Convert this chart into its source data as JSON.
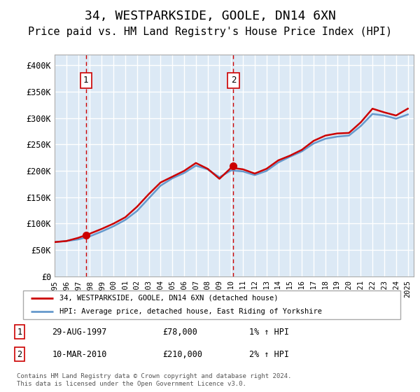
{
  "title": "34, WESTPARKSIDE, GOOLE, DN14 6XN",
  "subtitle": "Price paid vs. HM Land Registry's House Price Index (HPI)",
  "title_fontsize": 13,
  "subtitle_fontsize": 11,
  "ylabel_ticks": [
    "£0",
    "£50K",
    "£100K",
    "£150K",
    "£200K",
    "£250K",
    "£300K",
    "£350K",
    "£400K"
  ],
  "ytick_vals": [
    0,
    50000,
    100000,
    150000,
    200000,
    250000,
    300000,
    350000,
    400000
  ],
  "ylim": [
    0,
    420000
  ],
  "xlim_min": 1995.0,
  "xlim_max": 2025.5,
  "plot_bg": "#dce9f5",
  "grid_color": "#ffffff",
  "red_line_color": "#cc0000",
  "blue_line_color": "#6699cc",
  "marker_color": "#cc0000",
  "dashed_color": "#cc0000",
  "legend_label_red": "34, WESTPARKSIDE, GOOLE, DN14 6XN (detached house)",
  "legend_label_blue": "HPI: Average price, detached house, East Riding of Yorkshire",
  "table_rows": [
    {
      "num": "1",
      "date": "29-AUG-1997",
      "price": "£78,000",
      "hpi": "1% ↑ HPI"
    },
    {
      "num": "2",
      "date": "10-MAR-2010",
      "price": "£210,000",
      "hpi": "2% ↑ HPI"
    }
  ],
  "footnote": "Contains HM Land Registry data © Crown copyright and database right 2024.\nThis data is licensed under the Open Government Licence v3.0.",
  "point1_x": 1997.66,
  "point1_y": 78000,
  "point2_x": 2010.19,
  "point2_y": 210000,
  "hpi_data_x": [
    1995,
    1996,
    1997,
    1998,
    1999,
    2000,
    2001,
    2002,
    2003,
    2004,
    2005,
    2006,
    2007,
    2008,
    2009,
    2010,
    2011,
    2012,
    2013,
    2014,
    2015,
    2016,
    2017,
    2018,
    2019,
    2020,
    2021,
    2022,
    2023,
    2024,
    2025
  ],
  "hpi_data_y": [
    65000,
    67000,
    70000,
    76000,
    85000,
    95000,
    107000,
    124000,
    148000,
    172000,
    186000,
    196000,
    210000,
    203000,
    188000,
    201000,
    199000,
    192000,
    200000,
    216000,
    227000,
    237000,
    252000,
    261000,
    265000,
    267000,
    285000,
    308000,
    305000,
    299000,
    307000
  ],
  "price_data_x": [
    1995,
    1996,
    1997,
    1998,
    1999,
    2000,
    2001,
    2002,
    2003,
    2004,
    2005,
    2006,
    2007,
    2008,
    2009,
    2010,
    2011,
    2012,
    2013,
    2014,
    2015,
    2016,
    2017,
    2018,
    2019,
    2020,
    2021,
    2022,
    2023,
    2024,
    2025
  ],
  "price_data_y": [
    65000,
    67000,
    73000,
    81000,
    90000,
    100000,
    112000,
    132000,
    156000,
    178000,
    189000,
    200000,
    215000,
    204000,
    185000,
    206000,
    203000,
    195000,
    204000,
    220000,
    229000,
    240000,
    257000,
    267000,
    271000,
    272000,
    292000,
    318000,
    311000,
    305000,
    318000
  ],
  "xtick_years": [
    1995,
    1996,
    1997,
    1998,
    1999,
    2000,
    2001,
    2002,
    2003,
    2004,
    2005,
    2006,
    2007,
    2008,
    2009,
    2010,
    2011,
    2012,
    2013,
    2014,
    2015,
    2016,
    2017,
    2018,
    2019,
    2020,
    2021,
    2022,
    2023,
    2024,
    2025
  ]
}
